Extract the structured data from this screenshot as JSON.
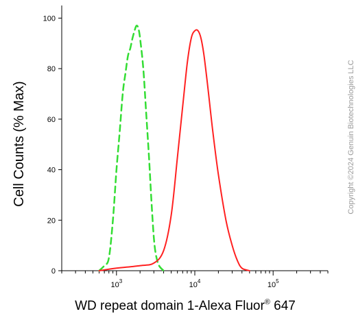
{
  "chart_data": {
    "type": "line",
    "xlabel_main": "WD repeat domain 1-Alexa Fluor",
    "xlabel_sup": "®",
    "xlabel_tail": " 647",
    "ylabel": "Cell Counts (% Max)",
    "x_scale": "log",
    "xlim": [
      200,
      500000
    ],
    "ylim": [
      0,
      105
    ],
    "yticks": [
      "0",
      "20",
      "40",
      "60",
      "80",
      "100"
    ],
    "yticks_values": [
      0,
      20,
      40,
      60,
      80,
      100
    ],
    "xticks_values": [
      1000,
      10000,
      100000
    ],
    "xticks_base": [
      "10",
      "10",
      "10"
    ],
    "xticks_exp": [
      "3",
      "4",
      "5"
    ],
    "grid": false,
    "series": [
      {
        "color": "#33dd33",
        "style": "dashed",
        "x": [
          600,
          700,
          800,
          900,
          1000,
          1100,
          1200,
          1300,
          1400,
          1500,
          1600,
          1700,
          1800,
          1900,
          2000,
          2200,
          2400,
          2600,
          2800,
          3000,
          3200,
          3500,
          4000
        ],
        "y": [
          0,
          2,
          5,
          20,
          40,
          55,
          70,
          78,
          85,
          88,
          92,
          95,
          97,
          96,
          92,
          80,
          62,
          45,
          27,
          13,
          6,
          2,
          0
        ]
      },
      {
        "color": "#ff2020",
        "style": "solid",
        "x": [
          600,
          1000,
          2000,
          3000,
          4000,
          5000,
          6000,
          7000,
          8000,
          9000,
          10000,
          11000,
          12000,
          13000,
          14000,
          15000,
          17000,
          20000,
          25000,
          30000,
          35000,
          40000,
          50000
        ],
        "y": [
          0,
          1,
          2,
          3,
          8,
          22,
          45,
          65,
          82,
          92,
          95,
          95,
          92,
          86,
          78,
          70,
          55,
          38,
          20,
          10,
          4,
          1,
          0
        ]
      }
    ]
  },
  "copyright": "Copyright ©2024 Genuin Biotechnologies LLC"
}
